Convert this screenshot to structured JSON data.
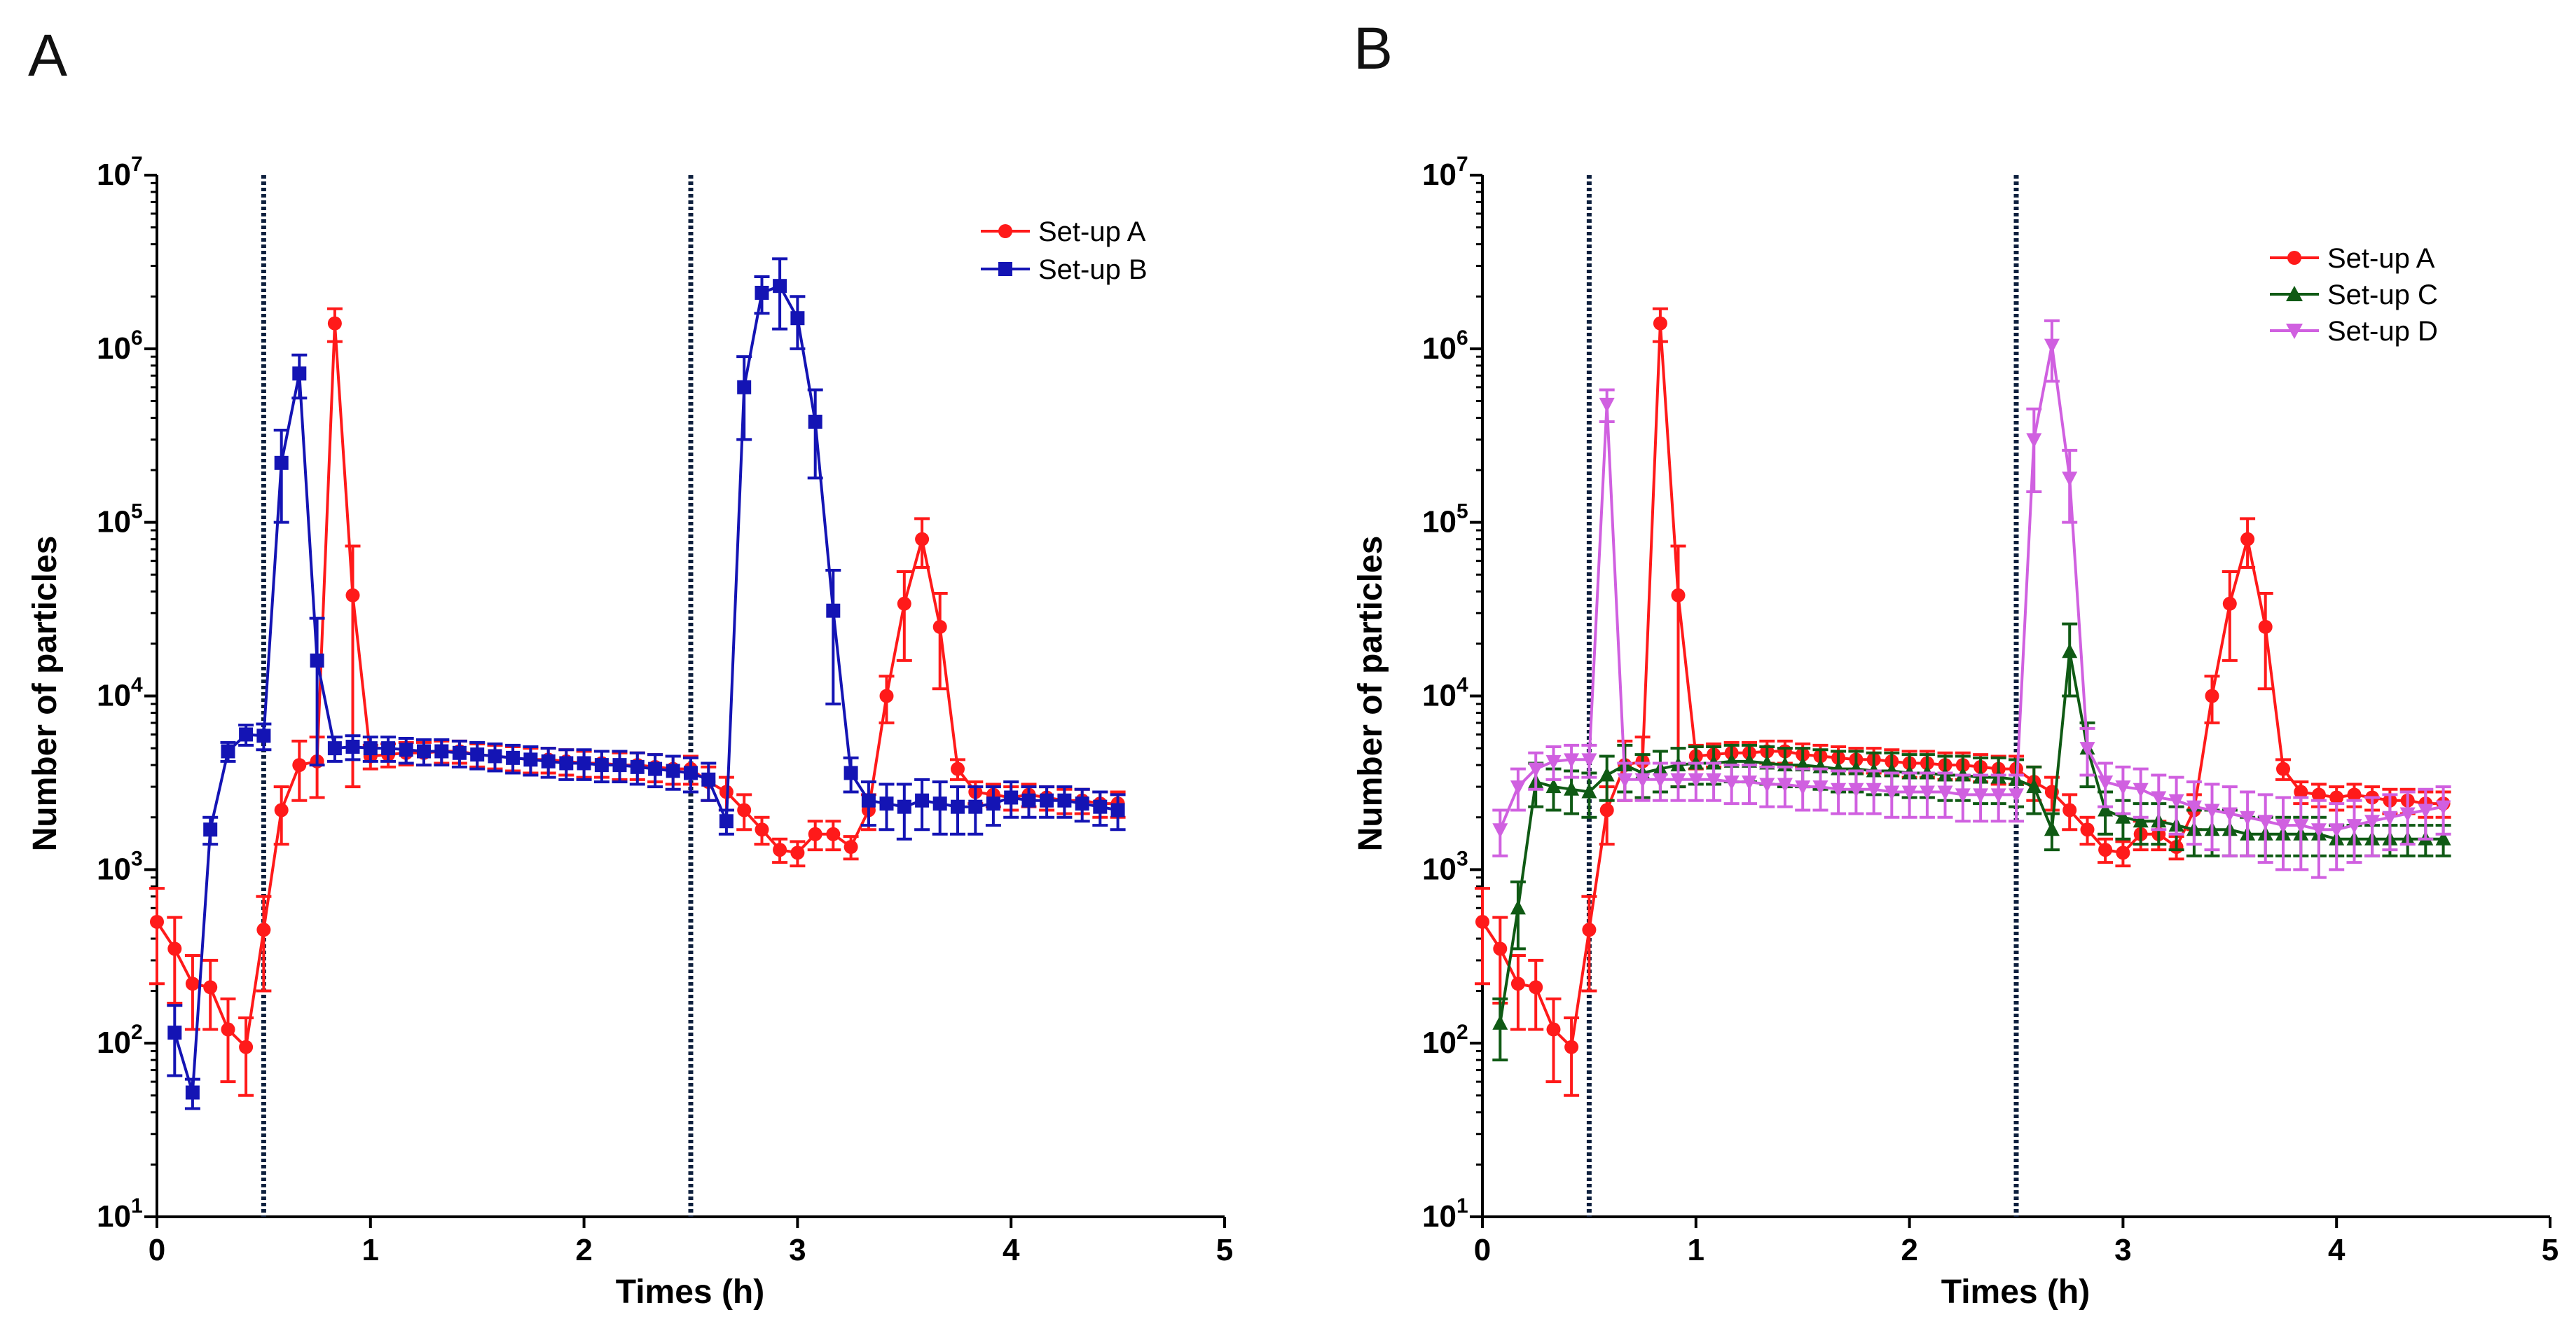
{
  "chart_data": [
    {
      "panel_label": "A",
      "type": "line",
      "xlabel": "Times (h)",
      "ylabel": "Number of particles",
      "xlim": [
        0,
        5
      ],
      "y_scale": "log",
      "ylim": [
        10,
        10000000
      ],
      "x_ticks": [
        "0",
        "1",
        "2",
        "3",
        "4",
        "5"
      ],
      "y_tick_exponents": [
        "1",
        "2",
        "3",
        "4",
        "5",
        "6",
        "7"
      ],
      "y_tick_base": "10",
      "vlines": [
        0.5,
        2.5
      ],
      "legend_position": "top-right",
      "series": [
        {
          "name": "Set-up A",
          "color": "#ff1a1a",
          "marker": "circle",
          "x": [
            0,
            0.083,
            0.167,
            0.25,
            0.333,
            0.417,
            0.5,
            0.583,
            0.667,
            0.75,
            0.833,
            0.917,
            1.0,
            1.083,
            1.167,
            1.25,
            1.333,
            1.417,
            1.5,
            1.583,
            1.667,
            1.75,
            1.833,
            1.917,
            2.0,
            2.083,
            2.167,
            2.25,
            2.333,
            2.417,
            2.5,
            2.583,
            2.667,
            2.75,
            2.833,
            2.917,
            3.0,
            3.083,
            3.167,
            3.25,
            3.333,
            3.417,
            3.5,
            3.583,
            3.667,
            3.75,
            3.833,
            3.917,
            4.0,
            4.083,
            4.167,
            4.25,
            4.333,
            4.417,
            4.5
          ],
          "y": [
            500,
            350,
            220,
            210,
            120,
            95,
            450,
            2200,
            4000,
            4200,
            1400000,
            38000,
            4500,
            4600,
            4700,
            4700,
            4800,
            4800,
            4600,
            4500,
            4400,
            4300,
            4300,
            4200,
            4100,
            4100,
            4000,
            4000,
            3900,
            3800,
            3800,
            3200,
            2800,
            2200,
            1700,
            1300,
            1250,
            1600,
            1600,
            1350,
            2200,
            10000,
            34000,
            80000,
            25000,
            3800,
            2800,
            2700,
            2600,
            2700,
            2600,
            2500,
            2500,
            2400,
            2400
          ],
          "y_err": [
            280,
            180,
            100,
            90,
            60,
            45,
            250,
            800,
            1500,
            1600,
            300000,
            35000,
            700,
            700,
            700,
            700,
            700,
            700,
            700,
            700,
            700,
            700,
            700,
            700,
            700,
            700,
            700,
            700,
            700,
            700,
            700,
            700,
            600,
            500,
            300,
            200,
            200,
            300,
            300,
            200,
            500,
            3000,
            18000,
            25000,
            14000,
            500,
            400,
            400,
            400,
            400,
            400,
            400,
            400,
            400,
            400
          ]
        },
        {
          "name": "Set-up B",
          "color": "#1414b4",
          "marker": "square",
          "x": [
            0.083,
            0.167,
            0.25,
            0.333,
            0.417,
            0.5,
            0.583,
            0.667,
            0.75,
            0.833,
            0.917,
            1.0,
            1.083,
            1.167,
            1.25,
            1.333,
            1.417,
            1.5,
            1.583,
            1.667,
            1.75,
            1.833,
            1.917,
            2.0,
            2.083,
            2.167,
            2.25,
            2.333,
            2.417,
            2.5,
            2.583,
            2.667,
            2.75,
            2.833,
            2.917,
            3.0,
            3.083,
            3.167,
            3.25,
            3.333,
            3.417,
            3.5,
            3.583,
            3.667,
            3.75,
            3.833,
            3.917,
            4.0,
            4.083,
            4.167,
            4.25,
            4.333,
            4.417,
            4.5
          ],
          "y": [
            115,
            52,
            1700,
            4800,
            6000,
            5900,
            220000,
            720000,
            16000,
            5000,
            5100,
            5000,
            5000,
            4900,
            4800,
            4800,
            4700,
            4600,
            4500,
            4400,
            4300,
            4200,
            4100,
            4100,
            4000,
            4000,
            3900,
            3800,
            3700,
            3600,
            3300,
            1900,
            600000,
            2100000,
            2300000,
            1500000,
            380000,
            31000,
            3600,
            2500,
            2400,
            2300,
            2500,
            2400,
            2300,
            2300,
            2400,
            2600,
            2500,
            2500,
            2500,
            2400,
            2300,
            2200
          ],
          "y_err": [
            50,
            10,
            300,
            600,
            800,
            1000,
            120000,
            200000,
            12000,
            800,
            800,
            800,
            800,
            800,
            800,
            800,
            800,
            800,
            800,
            800,
            800,
            800,
            800,
            800,
            800,
            800,
            800,
            800,
            800,
            800,
            800,
            300,
            300000,
            500000,
            1000000,
            500000,
            200000,
            22000,
            800,
            700,
            700,
            800,
            800,
            800,
            700,
            700,
            600,
            600,
            500,
            500,
            500,
            500,
            500,
            500
          ]
        }
      ]
    },
    {
      "panel_label": "B",
      "type": "line",
      "xlabel": "Times (h)",
      "ylabel": "Number of particles",
      "xlim": [
        0,
        5
      ],
      "y_scale": "log",
      "ylim": [
        10,
        10000000
      ],
      "x_ticks": [
        "0",
        "1",
        "2",
        "3",
        "4",
        "5"
      ],
      "y_tick_exponents": [
        "1",
        "2",
        "3",
        "4",
        "5",
        "6",
        "7"
      ],
      "y_tick_base": "10",
      "vlines": [
        0.5,
        2.5
      ],
      "legend_position": "top-right",
      "series": [
        {
          "name": "Set-up A",
          "color": "#ff1a1a",
          "marker": "circle",
          "x": [
            0,
            0.083,
            0.167,
            0.25,
            0.333,
            0.417,
            0.5,
            0.583,
            0.667,
            0.75,
            0.833,
            0.917,
            1.0,
            1.083,
            1.167,
            1.25,
            1.333,
            1.417,
            1.5,
            1.583,
            1.667,
            1.75,
            1.833,
            1.917,
            2.0,
            2.083,
            2.167,
            2.25,
            2.333,
            2.417,
            2.5,
            2.583,
            2.667,
            2.75,
            2.833,
            2.917,
            3.0,
            3.083,
            3.167,
            3.25,
            3.333,
            3.417,
            3.5,
            3.583,
            3.667,
            3.75,
            3.833,
            3.917,
            4.0,
            4.083,
            4.167,
            4.25,
            4.333,
            4.417,
            4.5
          ],
          "y": [
            500,
            350,
            220,
            210,
            120,
            95,
            450,
            2200,
            4000,
            4200,
            1400000,
            38000,
            4500,
            4600,
            4700,
            4700,
            4800,
            4800,
            4600,
            4500,
            4400,
            4300,
            4300,
            4200,
            4100,
            4100,
            4000,
            4000,
            3900,
            3800,
            3800,
            3200,
            2800,
            2200,
            1700,
            1300,
            1250,
            1600,
            1600,
            1350,
            2200,
            10000,
            34000,
            80000,
            25000,
            3800,
            2800,
            2700,
            2600,
            2700,
            2600,
            2500,
            2500,
            2400,
            2400
          ],
          "y_err": [
            280,
            180,
            100,
            90,
            60,
            45,
            250,
            800,
            1500,
            1600,
            300000,
            35000,
            700,
            700,
            700,
            700,
            700,
            700,
            700,
            700,
            700,
            700,
            700,
            700,
            700,
            700,
            700,
            700,
            700,
            700,
            700,
            700,
            600,
            500,
            300,
            200,
            200,
            300,
            300,
            200,
            500,
            3000,
            18000,
            25000,
            14000,
            500,
            400,
            400,
            400,
            400,
            400,
            400,
            400,
            400,
            400
          ]
        },
        {
          "name": "Set-up C",
          "color": "#0f5a14",
          "marker": "triangle-up",
          "x": [
            0.083,
            0.167,
            0.25,
            0.333,
            0.417,
            0.5,
            0.583,
            0.667,
            0.75,
            0.833,
            0.917,
            1.0,
            1.083,
            1.167,
            1.25,
            1.333,
            1.417,
            1.5,
            1.583,
            1.667,
            1.75,
            1.833,
            1.917,
            2.0,
            2.083,
            2.167,
            2.25,
            2.333,
            2.417,
            2.5,
            2.583,
            2.667,
            2.75,
            2.833,
            2.917,
            3.0,
            3.083,
            3.167,
            3.25,
            3.333,
            3.417,
            3.5,
            3.583,
            3.667,
            3.75,
            3.833,
            3.917,
            4.0,
            4.083,
            4.167,
            4.25,
            4.333,
            4.417,
            4.5
          ],
          "y": [
            130,
            600,
            3200,
            3000,
            2900,
            2800,
            3500,
            4000,
            3600,
            3800,
            4000,
            4100,
            4100,
            4200,
            4200,
            4100,
            4000,
            4000,
            3900,
            3800,
            3800,
            3700,
            3700,
            3600,
            3600,
            3500,
            3500,
            3400,
            3400,
            3300,
            3000,
            1700,
            18000,
            5000,
            2200,
            2000,
            1900,
            1900,
            1800,
            1700,
            1700,
            1700,
            1600,
            1600,
            1600,
            1600,
            1600,
            1500,
            1500,
            1500,
            1500,
            1500,
            1500,
            1500
          ],
          "y_err": [
            50,
            250,
            900,
            800,
            800,
            800,
            1000,
            1200,
            1000,
            1000,
            1000,
            1000,
            1000,
            1000,
            1000,
            1000,
            1000,
            1000,
            1000,
            1000,
            1000,
            1000,
            1000,
            1000,
            1000,
            1000,
            1000,
            1000,
            1000,
            1000,
            900,
            400,
            8000,
            2000,
            600,
            500,
            500,
            500,
            500,
            500,
            500,
            500,
            400,
            400,
            400,
            400,
            400,
            300,
            300,
            300,
            300,
            300,
            300,
            300
          ]
        },
        {
          "name": "Set-up D",
          "color": "#d060e0",
          "marker": "triangle-down",
          "x": [
            0.083,
            0.167,
            0.25,
            0.333,
            0.417,
            0.5,
            0.583,
            0.667,
            0.75,
            0.833,
            0.917,
            1.0,
            1.083,
            1.167,
            1.25,
            1.333,
            1.417,
            1.5,
            1.583,
            1.667,
            1.75,
            1.833,
            1.917,
            2.0,
            2.083,
            2.167,
            2.25,
            2.333,
            2.417,
            2.5,
            2.583,
            2.667,
            2.75,
            2.833,
            2.917,
            3.0,
            3.083,
            3.167,
            3.25,
            3.333,
            3.417,
            3.5,
            3.583,
            3.667,
            3.75,
            3.833,
            3.917,
            4.0,
            4.083,
            4.167,
            4.25,
            4.333,
            4.417,
            4.5
          ],
          "y": [
            1700,
            3000,
            3800,
            4200,
            4300,
            4300,
            480000,
            3300,
            3300,
            3300,
            3300,
            3300,
            3300,
            3200,
            3200,
            3100,
            3100,
            3000,
            3000,
            2900,
            2900,
            2900,
            2800,
            2800,
            2800,
            2800,
            2700,
            2700,
            2700,
            2700,
            300000,
            1050000,
            180000,
            5000,
            3200,
            3000,
            2900,
            2600,
            2500,
            2300,
            2200,
            2100,
            2000,
            1900,
            1800,
            1800,
            1700,
            1700,
            1800,
            1900,
            2000,
            2100,
            2200,
            2300
          ],
          "y_err": [
            500,
            800,
            900,
            900,
            900,
            900,
            100000,
            800,
            800,
            800,
            800,
            800,
            800,
            800,
            800,
            800,
            800,
            800,
            800,
            800,
            800,
            800,
            800,
            800,
            800,
            800,
            800,
            800,
            800,
            800,
            150000,
            400000,
            80000,
            1500,
            900,
            900,
            900,
            900,
            900,
            900,
            900,
            900,
            800,
            800,
            800,
            800,
            800,
            700,
            700,
            700,
            700,
            700,
            700,
            700
          ]
        }
      ]
    }
  ]
}
